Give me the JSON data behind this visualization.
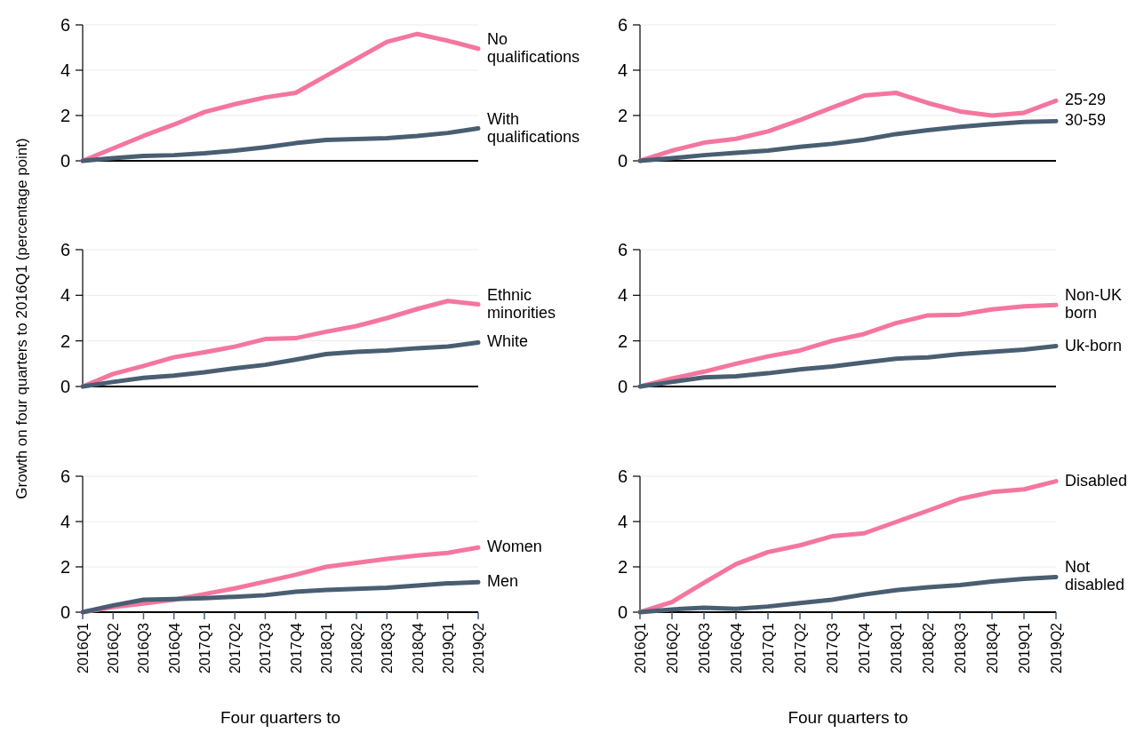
{
  "chart_data": [
    {
      "type": "line",
      "categories": [
        null,
        null,
        null,
        null,
        null,
        null,
        null,
        null,
        null,
        null,
        null,
        null,
        null,
        null
      ],
      "ylim": [
        0,
        6
      ],
      "yticks": [
        0,
        2,
        4,
        6
      ],
      "grid": "y",
      "tick_labels": "y",
      "series": [
        {
          "name": "No qualifications",
          "color": "#f4769e",
          "values": [
            0,
            0.55,
            1.1,
            1.6,
            2.15,
            2.5,
            2.8,
            3.0,
            3.75,
            4.5,
            5.25,
            5.6,
            5.3,
            4.95
          ]
        },
        {
          "name": "With qualifications",
          "color": "#4a5e72",
          "values": [
            0,
            0.12,
            0.22,
            0.25,
            0.33,
            0.45,
            0.6,
            0.78,
            0.92,
            0.96,
            1.0,
            1.1,
            1.23,
            1.43
          ]
        }
      ]
    },
    {
      "type": "line",
      "categories": [
        null,
        null,
        null,
        null,
        null,
        null,
        null,
        null,
        null,
        null,
        null,
        null,
        null,
        null
      ],
      "ylim": [
        0,
        6
      ],
      "yticks": [
        0,
        2,
        4,
        6
      ],
      "grid": "y",
      "tick_labels": "y",
      "series": [
        {
          "name": "25-29",
          "color": "#f4769e",
          "values": [
            0,
            0.45,
            0.8,
            0.97,
            1.3,
            1.8,
            2.35,
            2.88,
            3.0,
            2.55,
            2.18,
            2.0,
            2.12,
            2.65
          ]
        },
        {
          "name": "30-59",
          "color": "#4a5e72",
          "values": [
            0,
            0.12,
            0.25,
            0.35,
            0.45,
            0.62,
            0.75,
            0.93,
            1.18,
            1.35,
            1.5,
            1.62,
            1.72,
            1.75
          ]
        }
      ]
    },
    {
      "type": "line",
      "ylabel": "Growth on four quarters to 2016Q1 (percentage point)",
      "categories": [
        null,
        null,
        null,
        null,
        null,
        null,
        null,
        null,
        null,
        null,
        null,
        null,
        null,
        null
      ],
      "ylim": [
        0,
        6
      ],
      "yticks": [
        0,
        2,
        4,
        6
      ],
      "grid": "y",
      "tick_labels": "y",
      "series": [
        {
          "name": "Ethnic minorities",
          "color": "#f4769e",
          "values": [
            0,
            0.55,
            0.9,
            1.28,
            1.5,
            1.75,
            2.08,
            2.12,
            2.4,
            2.65,
            3.0,
            3.4,
            3.75,
            3.6
          ]
        },
        {
          "name": "White",
          "color": "#4a5e72",
          "values": [
            0,
            0.2,
            0.38,
            0.48,
            0.62,
            0.8,
            0.95,
            1.18,
            1.42,
            1.52,
            1.58,
            1.68,
            1.75,
            1.93
          ]
        }
      ]
    },
    {
      "type": "line",
      "categories": [
        null,
        null,
        null,
        null,
        null,
        null,
        null,
        null,
        null,
        null,
        null,
        null,
        null,
        null
      ],
      "ylim": [
        0,
        6
      ],
      "yticks": [
        0,
        2,
        4,
        6
      ],
      "grid": "y",
      "tick_labels": "y",
      "series": [
        {
          "name": "Non-UK born",
          "color": "#f4769e",
          "values": [
            0,
            0.35,
            0.65,
            1.0,
            1.32,
            1.58,
            2.0,
            2.3,
            2.78,
            3.12,
            3.15,
            3.38,
            3.52,
            3.57
          ]
        },
        {
          "name": "Uk-born",
          "color": "#4a5e72",
          "values": [
            0,
            0.2,
            0.4,
            0.45,
            0.58,
            0.75,
            0.88,
            1.05,
            1.22,
            1.28,
            1.42,
            1.52,
            1.62,
            1.77
          ]
        }
      ]
    },
    {
      "type": "line",
      "xlabel": "Four quarters to",
      "categories": [
        "2016Q1",
        "2016Q2",
        "2016Q3",
        "2016Q4",
        "2017Q1",
        "2017Q2",
        "2017Q3",
        "2017Q4",
        "2018Q1",
        "2018Q2",
        "2018Q3",
        "2018Q4",
        "2019Q1",
        "2019Q2"
      ],
      "ylim": [
        0,
        6
      ],
      "yticks": [
        0,
        2,
        4,
        6
      ],
      "grid": "y",
      "series": [
        {
          "name": "Women",
          "color": "#f4769e",
          "values": [
            0,
            0.22,
            0.38,
            0.55,
            0.8,
            1.05,
            1.35,
            1.65,
            2.0,
            2.18,
            2.35,
            2.5,
            2.62,
            2.85
          ]
        },
        {
          "name": "Men",
          "color": "#4a5e72",
          "values": [
            0,
            0.3,
            0.55,
            0.58,
            0.62,
            0.68,
            0.75,
            0.9,
            0.98,
            1.03,
            1.08,
            1.18,
            1.27,
            1.32
          ]
        }
      ]
    },
    {
      "type": "line",
      "xlabel": "Four quarters to",
      "categories": [
        "2016Q1",
        "2016Q2",
        "2016Q3",
        "2016Q4",
        "2017Q1",
        "2017Q2",
        "2017Q3",
        "2017Q4",
        "2018Q1",
        "2018Q2",
        "2018Q3",
        "2018Q4",
        "2019Q1",
        "2019Q2"
      ],
      "ylim": [
        0,
        6
      ],
      "yticks": [
        0,
        2,
        4,
        6
      ],
      "grid": "y",
      "series": [
        {
          "name": "Disabled",
          "color": "#f4769e",
          "values": [
            0,
            0.45,
            1.3,
            2.12,
            2.65,
            2.95,
            3.35,
            3.48,
            3.98,
            4.48,
            5.0,
            5.3,
            5.42,
            5.78
          ]
        },
        {
          "name": "Not disabled",
          "color": "#4a5e72",
          "values": [
            0,
            0.12,
            0.2,
            0.15,
            0.25,
            0.4,
            0.55,
            0.78,
            0.97,
            1.1,
            1.2,
            1.35,
            1.47,
            1.55
          ]
        }
      ]
    }
  ]
}
